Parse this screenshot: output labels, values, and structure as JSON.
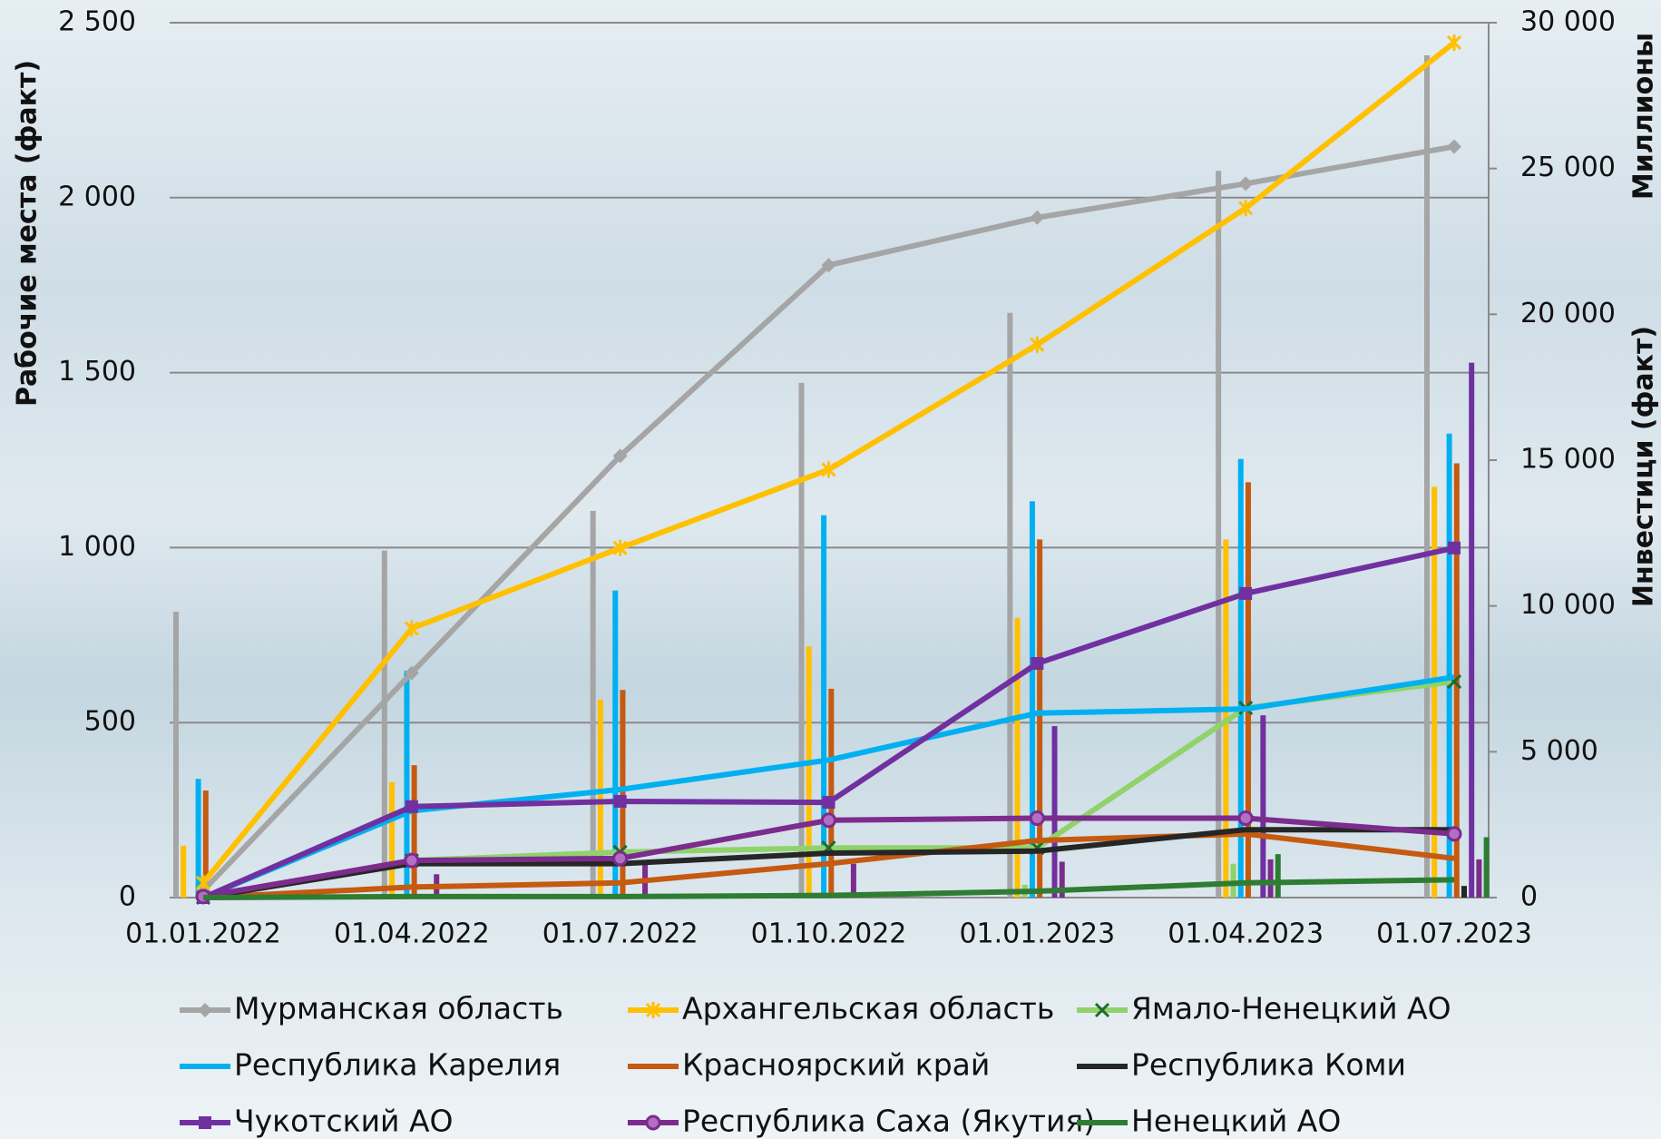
{
  "chart_data": {
    "type": "bar-line",
    "categories": [
      "01.01.2022",
      "01.04.2022",
      "01.07.2022",
      "01.10.2022",
      "01.01.2023",
      "01.04.2023",
      "01.07.2023"
    ],
    "y_label": "Рабочие места (факт)",
    "y2_label": "Инвестици (факт)",
    "y2_unit": "Миллионы",
    "ylim": [
      0,
      2500
    ],
    "yticks": [
      0,
      500,
      {
        "value": 1000,
        "label": "1 000"
      },
      {
        "value": 1500,
        "label": "1 500"
      },
      {
        "value": 2000,
        "label": "2 000"
      },
      {
        "value": 2500,
        "label": "2 500"
      }
    ],
    "y2lim": [
      0,
      30000
    ],
    "y2ticks": [
      0,
      {
        "value": 5000,
        "label": "5 000"
      },
      {
        "value": 10000,
        "label": "10 000"
      },
      {
        "value": 15000,
        "label": "15 000"
      },
      {
        "value": 20000,
        "label": "20 000"
      },
      {
        "value": 25000,
        "label": "25 000"
      },
      {
        "value": 30000,
        "label": "30 000"
      }
    ],
    "grid": true,
    "series": [
      {
        "name": "Мурманская область",
        "color": "#a5a5a5",
        "marker": "diamond",
        "values": [
          20,
          642,
          1262,
          1807,
          1943,
          2040,
          2146
        ]
      },
      {
        "name": "Архангельская область",
        "color": "#ffc000",
        "marker": "star",
        "values": [
          42,
          769,
          999,
          1223,
          1580,
          1970,
          2443
        ]
      },
      {
        "name": "Ямало-Ненецкий АО",
        "color": "#8fd36a",
        "marker": "x",
        "values": [
          0,
          106,
          130,
          142,
          142,
          542,
          617
        ]
      },
      {
        "name": "Республика Карелия",
        "color": "#00b0f0",
        "marker": "none",
        "values": [
          0,
          248,
          309,
          393,
          527,
          539,
          630
        ]
      },
      {
        "name": "Красноярский край",
        "color": "#c55a11",
        "marker": "none",
        "values": [
          0,
          30,
          42,
          97,
          163,
          182,
          112
        ]
      },
      {
        "name": "Республика Коми",
        "color": "#262626",
        "marker": "none",
        "values": [
          0,
          97,
          97,
          127,
          133,
          194,
          194
        ]
      },
      {
        "name": "Чукотский АО",
        "color": "#7030a0",
        "marker": "square",
        "values": [
          0,
          260,
          275,
          272,
          669,
          869,
          999
        ]
      },
      {
        "name": "Республика Саха (Якутия)",
        "color": "#7b2c8c",
        "marker": "circle",
        "values": [
          3,
          106,
          112,
          221,
          227,
          227,
          182
        ]
      },
      {
        "name": "Ненецкий АО",
        "color": "#2e7d32",
        "marker": "none",
        "values": [
          0,
          3,
          3,
          6,
          18,
          42,
          51
        ]
      }
    ],
    "bar_series": [
      {
        "type": "bar",
        "axis": "y2",
        "color": "#a5a5a5",
        "values": [
          9800,
          11900,
          13260,
          17650,
          20050,
          24920,
          28880
        ]
      },
      {
        "type": "bar",
        "axis": "y2",
        "color": "#ffc000",
        "values": [
          1780,
          3960,
          6790,
          8610,
          9590,
          12280,
          14090
        ]
      },
      {
        "type": "bar",
        "axis": "y2",
        "color": "#8fd36a",
        "values": [
          0,
          0,
          0,
          0,
          440,
          1160,
          0
        ]
      },
      {
        "type": "bar",
        "axis": "y2",
        "color": "#00b0f0",
        "values": [
          4070,
          7770,
          10530,
          13110,
          13590,
          15040,
          15910
        ]
      },
      {
        "type": "bar",
        "axis": "y2",
        "color": "#c55a11",
        "values": [
          3670,
          4540,
          7120,
          7160,
          12280,
          14240,
          14890
        ]
      },
      {
        "type": "bar",
        "axis": "y2",
        "color": "#262626",
        "values": [
          0,
          0,
          0,
          0,
          0,
          0,
          400
        ]
      },
      {
        "type": "bar",
        "axis": "y2",
        "color": "#7030a0",
        "values": [
          0,
          0,
          0,
          0,
          5880,
          6250,
          18340
        ]
      },
      {
        "type": "bar",
        "axis": "y2",
        "color": "#7b2c8c",
        "values": [
          0,
          800,
          1160,
          1160,
          1230,
          1310,
          1310
        ]
      },
      {
        "type": "bar",
        "axis": "y2",
        "color": "#2e7d32",
        "values": [
          0,
          0,
          0,
          0,
          0,
          1490,
          2070
        ]
      }
    ]
  }
}
